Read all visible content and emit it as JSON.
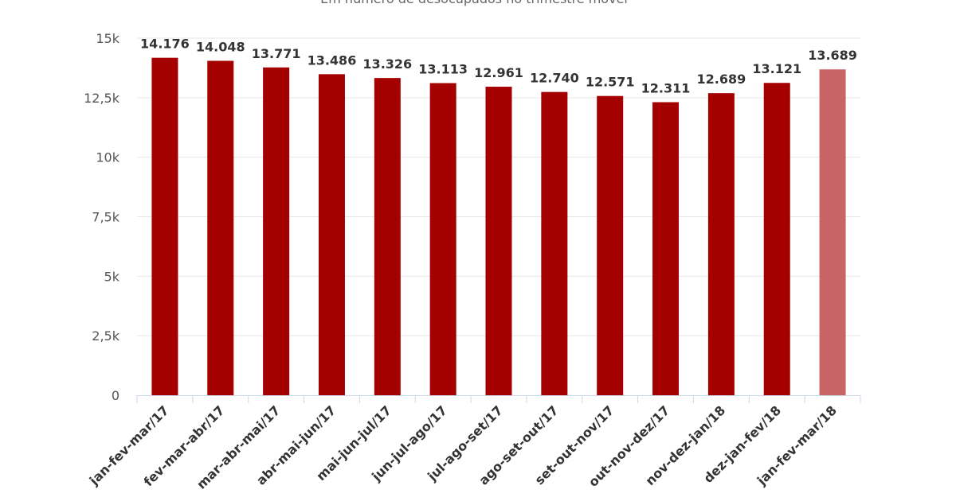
{
  "chart_data": {
    "type": "bar",
    "subtitle": "Em número de desocupados no trimestre móvel",
    "categories": [
      "jan-fev-mar/17",
      "fev-mar-abr/17",
      "mar-abr-mai/17",
      "abr-mai-jun/17",
      "mai-jun-jul/17",
      "jun-jul-ago/17",
      "jul-ago-set/17",
      "ago-set-out/17",
      "set-out-nov/17",
      "out-nov-dez/17",
      "nov-dez-jan/18",
      "dez-jan-fev/18",
      "jan-fev-mar/18"
    ],
    "values": [
      14176,
      14048,
      13771,
      13486,
      13326,
      13113,
      12961,
      12740,
      12571,
      12311,
      12689,
      13121,
      13689
    ],
    "value_labels": [
      "14.176",
      "14.048",
      "13.771",
      "13.486",
      "13.326",
      "13.113",
      "12.961",
      "12.740",
      "12.571",
      "12.311",
      "12.689",
      "13.121",
      "13.689"
    ],
    "ylim": [
      0,
      15000
    ],
    "yticks": [
      0,
      2500,
      5000,
      7500,
      10000,
      12500,
      15000
    ],
    "ytick_labels": [
      "0",
      "2,5k",
      "5k",
      "7,5k",
      "10k",
      "12,5k",
      "15k"
    ],
    "grid": true,
    "colors": {
      "bar": "#a50000",
      "highlight_bar": "#c86464"
    },
    "highlight_index": 12
  }
}
